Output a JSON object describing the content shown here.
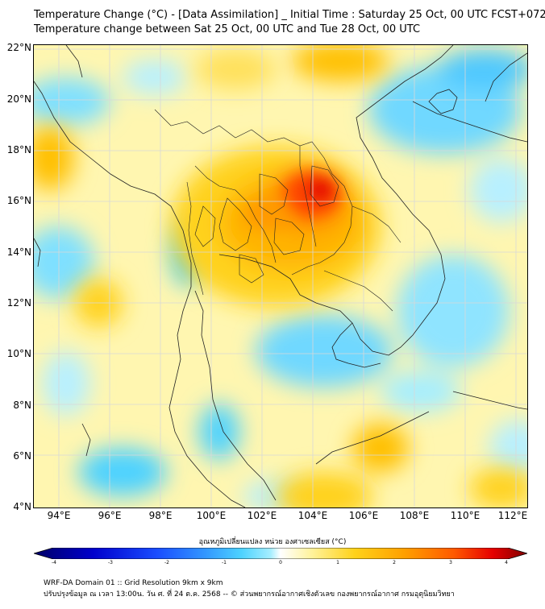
{
  "title": {
    "line1": "Temperature Change (°C) - [Data Assimilation] _ Initial Time : Saturday 25 Oct, 00 UTC FCST+072",
    "line2": "Temperature change between Sat 25 Oct, 00 UTC and Tue 28 Oct, 00 UTC"
  },
  "axes": {
    "lat_labels": [
      "22°N",
      "20°N",
      "18°N",
      "16°N",
      "14°N",
      "12°N",
      "10°N",
      "8°N",
      "6°N",
      "4°N"
    ],
    "lat_values": [
      22,
      20,
      18,
      16,
      14,
      12,
      10,
      8,
      6,
      4
    ],
    "lon_labels": [
      "94°E",
      "96°E",
      "98°E",
      "100°E",
      "102°E",
      "104°E",
      "106°E",
      "108°E",
      "110°E",
      "112°E"
    ],
    "lon_values": [
      94,
      96,
      98,
      100,
      102,
      104,
      106,
      108,
      110,
      112
    ],
    "lat_range": [
      4,
      22.2
    ],
    "lon_range": [
      93,
      112.5
    ],
    "grid": true
  },
  "colorbar": {
    "label": "อุณหภูมิเปลี่ยนแปลง หน่วย องศาเซลเซียส (°C)",
    "ticks": [
      "-4",
      "-3",
      "-2",
      "-1",
      "0",
      "1",
      "2",
      "3",
      "4"
    ],
    "range": [
      -4,
      4
    ],
    "colors": [
      "#000066",
      "#0000cc",
      "#1a4dff",
      "#3399ff",
      "#4dd2ff",
      "#a6eeff",
      "#ffffff",
      "#fff3a0",
      "#ffd21a",
      "#ffa000",
      "#ff5a00",
      "#e60000",
      "#800000"
    ]
  },
  "field": {
    "description_units": "°C",
    "warm_max_location": [
      104,
      16.5
    ],
    "warm_max_value": 3.5
  },
  "footer": {
    "line1": "WRF-DA Domain 01 :: Grid Resolution 9km x 9km",
    "line2": "ปรับปรุงข้อมูล ณ เวลา 13:00น. วัน ศ. ที่ 24 ต.ค. 2568 -- © ส่วนพยากรณ์อากาศเชิงตัวเลข กองพยากรณ์อากาศ กรมอุตุนิยมวิทยา"
  }
}
